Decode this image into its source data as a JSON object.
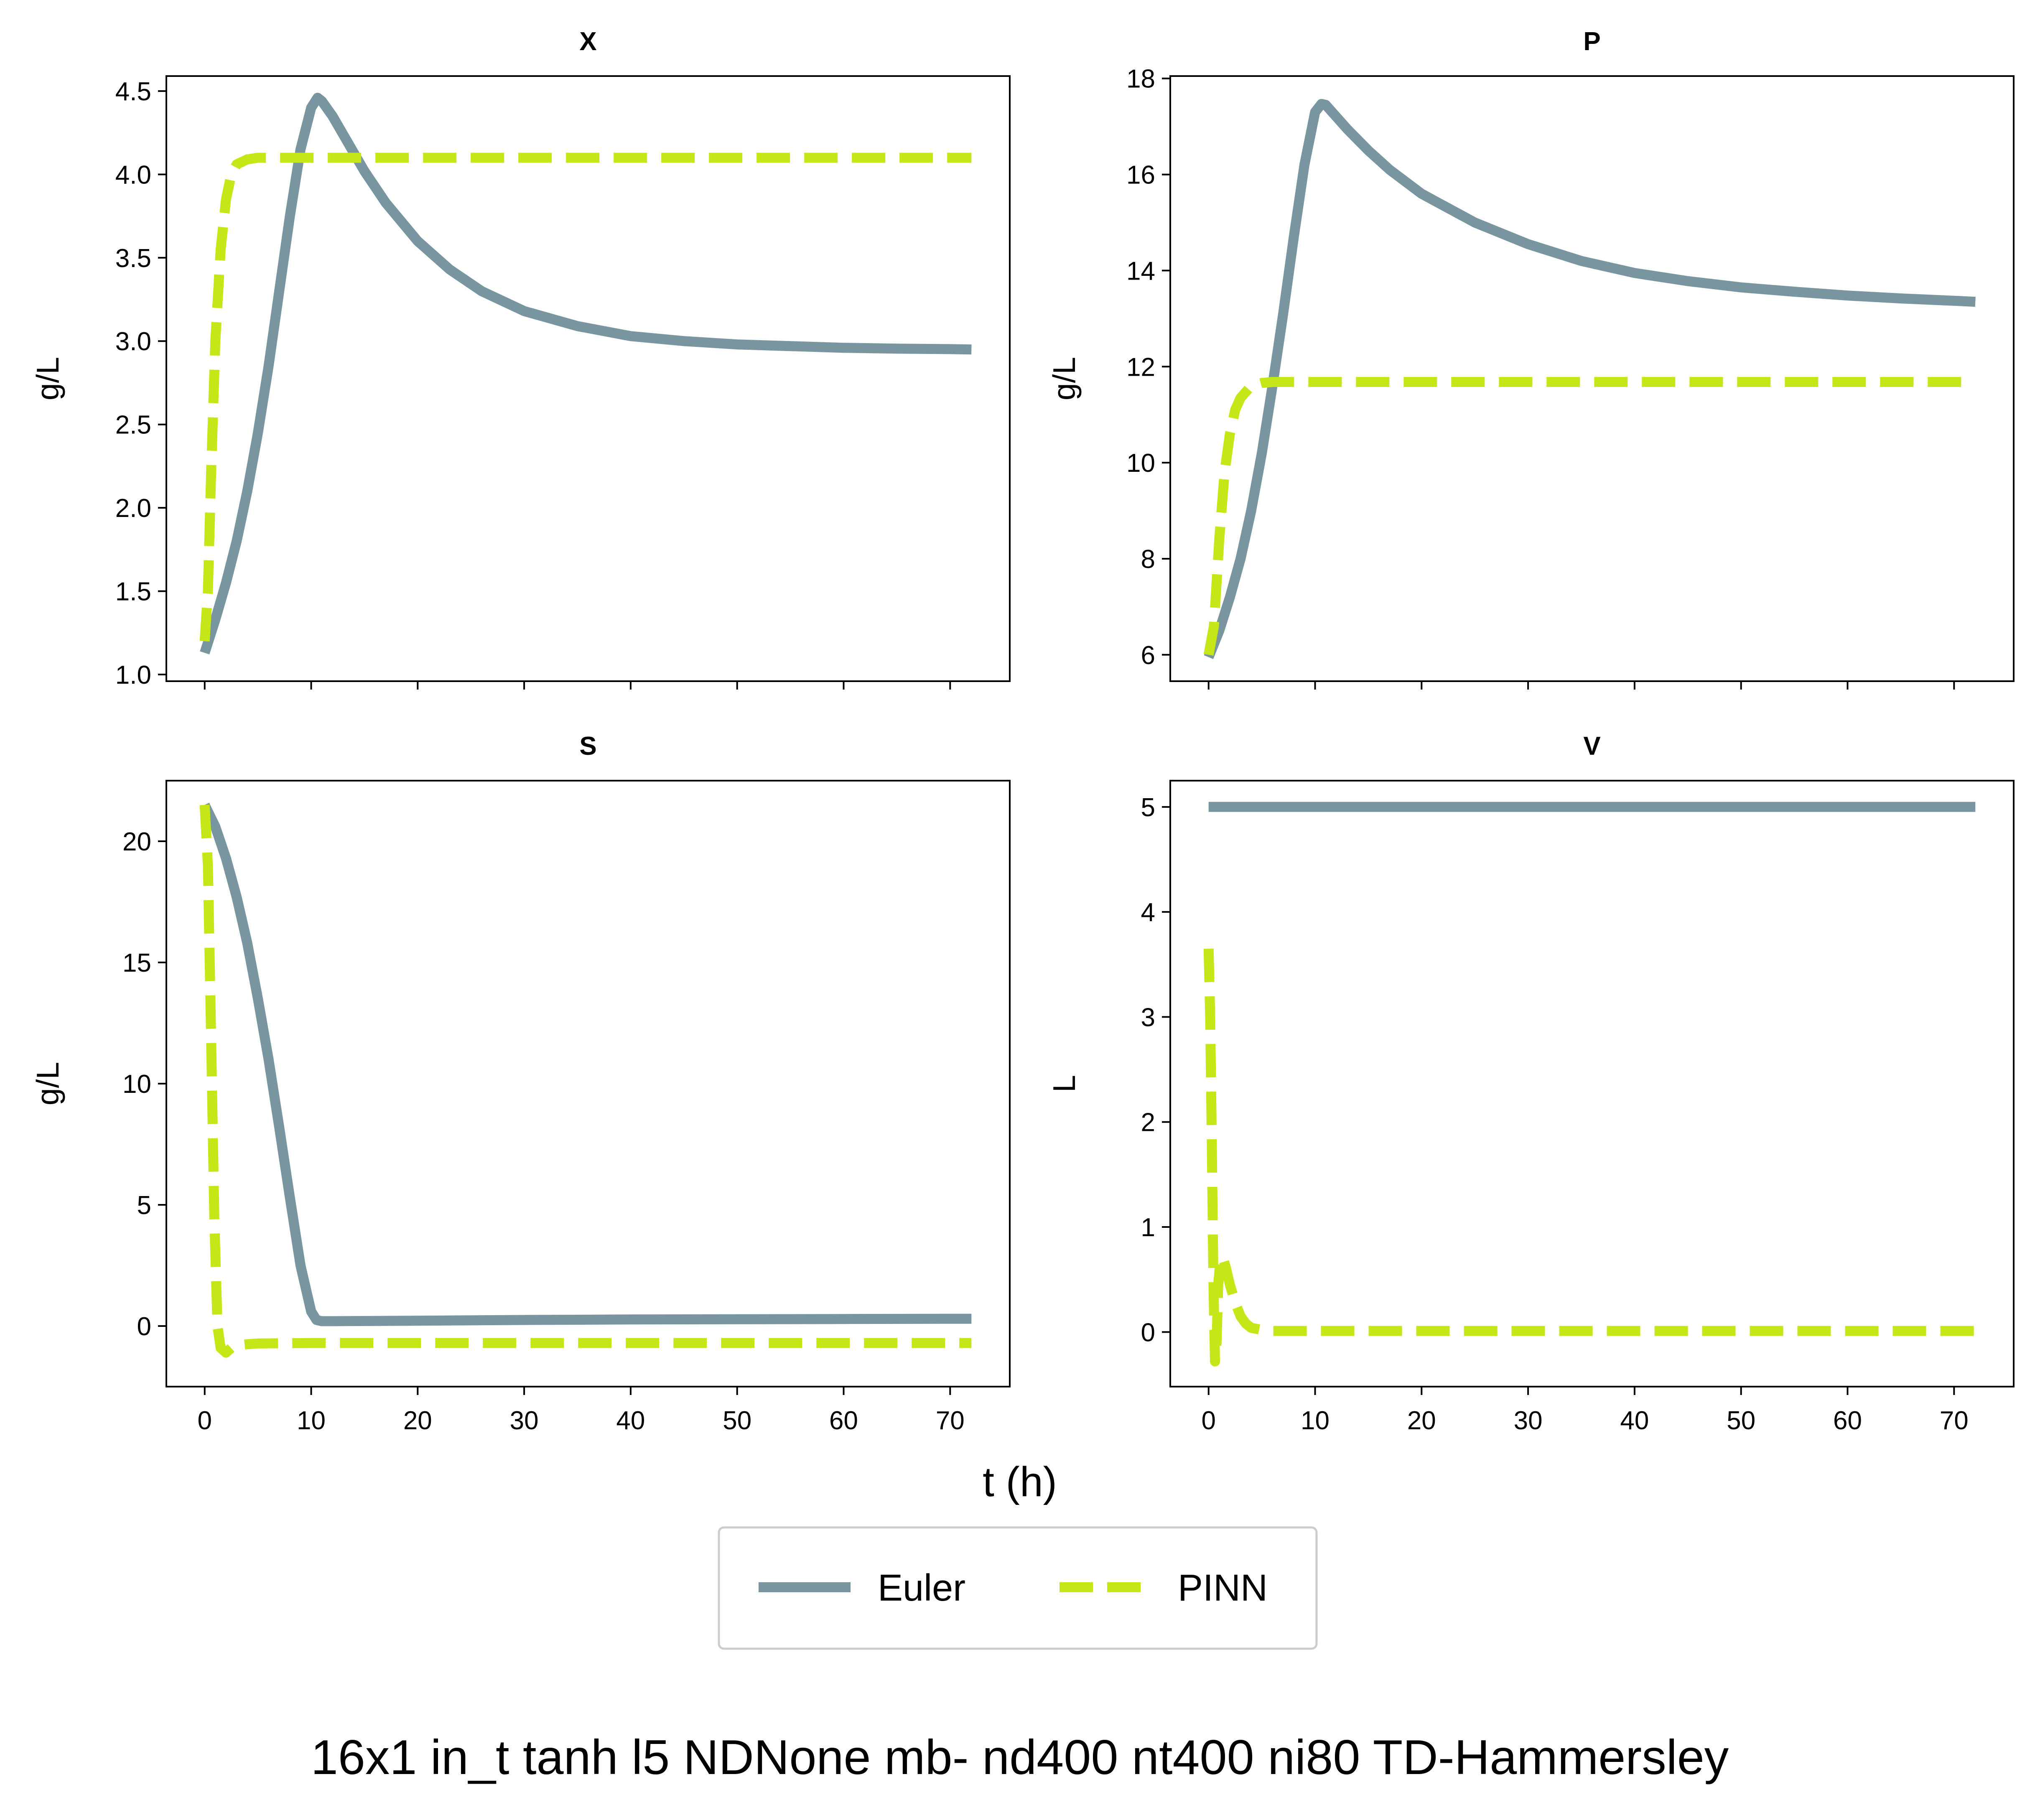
{
  "figure": {
    "suptitle": "16x1 in_t tanh l5 NDNone mb- nd400 nt400 ni80 TD-Hammersley",
    "xlabel": "t (h)",
    "colors": {
      "euler": "#7895A0",
      "pinn": "#C5E617"
    }
  },
  "legend": {
    "placement": "bottom-center",
    "entries": [
      {
        "label": "Euler",
        "style": "solid"
      },
      {
        "label": "PINN",
        "style": "dashed"
      }
    ]
  },
  "chart_data": [
    {
      "type": "line",
      "title": "X",
      "ylabel": "g/L",
      "xlim": [
        -3.6,
        75.6
      ],
      "ylim": [
        0.96,
        4.59
      ],
      "xticks": [
        0,
        10,
        20,
        30,
        40,
        50,
        60,
        70
      ],
      "yticks": [
        1.0,
        1.5,
        2.0,
        2.5,
        3.0,
        3.5,
        4.0,
        4.5
      ],
      "ytick_labels": [
        "1.0",
        "1.5",
        "2.0",
        "2.5",
        "3.0",
        "3.5",
        "4.0",
        "4.5"
      ],
      "show_xtick_labels": false,
      "series": [
        {
          "name": "Euler",
          "style": "solid",
          "x": [
            0,
            1,
            2,
            3,
            4,
            5,
            6,
            7,
            8,
            9,
            10,
            10.6,
            11,
            12,
            13,
            14,
            15,
            17,
            20,
            23,
            26,
            30,
            35,
            40,
            45,
            50,
            55,
            60,
            65,
            70,
            72
          ],
          "y": [
            1.13,
            1.33,
            1.55,
            1.8,
            2.1,
            2.45,
            2.85,
            3.3,
            3.75,
            4.15,
            4.4,
            4.46,
            4.44,
            4.35,
            4.24,
            4.13,
            4.02,
            3.83,
            3.6,
            3.43,
            3.3,
            3.18,
            3.09,
            3.03,
            3.0,
            2.98,
            2.97,
            2.96,
            2.955,
            2.952,
            2.95
          ]
        },
        {
          "name": "PINN",
          "style": "dashed",
          "x": [
            0,
            0.3,
            0.6,
            1,
            1.5,
            2,
            2.5,
            3,
            4,
            5,
            6,
            8,
            10,
            15,
            20,
            30,
            40,
            50,
            60,
            70,
            72
          ],
          "y": [
            1.2,
            1.5,
            2.2,
            3.0,
            3.55,
            3.85,
            4.0,
            4.06,
            4.09,
            4.1,
            4.1,
            4.1,
            4.1,
            4.1,
            4.1,
            4.1,
            4.1,
            4.1,
            4.1,
            4.1,
            4.1
          ]
        }
      ]
    },
    {
      "type": "line",
      "title": "P",
      "ylabel": "g/L",
      "xlim": [
        -3.6,
        75.6
      ],
      "ylim": [
        5.45,
        18.05
      ],
      "xticks": [
        0,
        10,
        20,
        30,
        40,
        50,
        60,
        70
      ],
      "yticks": [
        6,
        8,
        10,
        12,
        14,
        16,
        18
      ],
      "ytick_labels": [
        "6",
        "8",
        "10",
        "12",
        "14",
        "16",
        "18"
      ],
      "show_xtick_labels": false,
      "series": [
        {
          "name": "Euler",
          "style": "solid",
          "x": [
            0,
            1,
            2,
            3,
            4,
            5,
            6,
            7,
            8,
            9,
            10,
            10.6,
            11,
            12,
            13,
            15,
            17,
            20,
            25,
            30,
            35,
            40,
            45,
            50,
            55,
            60,
            65,
            70,
            72
          ],
          "y": [
            5.95,
            6.5,
            7.2,
            8.0,
            9.0,
            10.2,
            11.6,
            13.1,
            14.7,
            16.2,
            17.3,
            17.47,
            17.45,
            17.2,
            16.95,
            16.5,
            16.1,
            15.6,
            15.0,
            14.55,
            14.2,
            13.95,
            13.78,
            13.65,
            13.56,
            13.48,
            13.42,
            13.37,
            13.35
          ]
        },
        {
          "name": "PINN",
          "style": "dashed",
          "x": [
            0,
            0.5,
            1,
            1.5,
            2,
            2.5,
            3,
            4,
            5,
            6,
            8,
            10,
            20,
            30,
            40,
            50,
            60,
            70,
            72
          ],
          "y": [
            6.0,
            6.6,
            8.4,
            9.8,
            10.6,
            11.1,
            11.35,
            11.6,
            11.66,
            11.68,
            11.68,
            11.68,
            11.68,
            11.68,
            11.68,
            11.68,
            11.68,
            11.68,
            11.68
          ]
        }
      ]
    },
    {
      "type": "line",
      "title": "S",
      "ylabel": "g/L",
      "xlim": [
        -3.6,
        75.6
      ],
      "ylim": [
        -2.5,
        22.5
      ],
      "xticks": [
        0,
        10,
        20,
        30,
        40,
        50,
        60,
        70
      ],
      "xtick_labels": [
        "0",
        "10",
        "20",
        "30",
        "40",
        "50",
        "60",
        "70"
      ],
      "yticks": [
        0,
        5,
        10,
        15,
        20
      ],
      "ytick_labels": [
        "0",
        "5",
        "10",
        "15",
        "20"
      ],
      "show_xtick_labels": true,
      "series": [
        {
          "name": "Euler",
          "style": "solid",
          "x": [
            0,
            1,
            2,
            3,
            4,
            5,
            6,
            7,
            8,
            9,
            10,
            10.5,
            11,
            12,
            20,
            30,
            40,
            50,
            60,
            70,
            72
          ],
          "y": [
            21.5,
            20.6,
            19.3,
            17.7,
            15.8,
            13.5,
            11.0,
            8.2,
            5.3,
            2.5,
            0.6,
            0.25,
            0.2,
            0.2,
            0.22,
            0.25,
            0.27,
            0.28,
            0.29,
            0.3,
            0.3
          ]
        },
        {
          "name": "PINN",
          "style": "dashed",
          "x": [
            0,
            0.3,
            0.6,
            0.9,
            1.2,
            1.5,
            2,
            2.5,
            3,
            4,
            5,
            10,
            20,
            30,
            40,
            50,
            60,
            70,
            72
          ],
          "y": [
            21.5,
            19.0,
            12.0,
            4.5,
            0.0,
            -0.9,
            -1.1,
            -0.9,
            -0.8,
            -0.75,
            -0.72,
            -0.7,
            -0.7,
            -0.7,
            -0.7,
            -0.7,
            -0.7,
            -0.7,
            -0.7
          ]
        }
      ]
    },
    {
      "type": "line",
      "title": "V",
      "ylabel": "L",
      "xlim": [
        -3.6,
        75.6
      ],
      "ylim": [
        -0.52,
        5.25
      ],
      "xticks": [
        0,
        10,
        20,
        30,
        40,
        50,
        60,
        70
      ],
      "xtick_labels": [
        "0",
        "10",
        "20",
        "30",
        "40",
        "50",
        "60",
        "70"
      ],
      "yticks": [
        0,
        1,
        2,
        3,
        4,
        5
      ],
      "ytick_labels": [
        "0",
        "1",
        "2",
        "3",
        "4",
        "5"
      ],
      "show_xtick_labels": true,
      "series": [
        {
          "name": "Euler",
          "style": "solid",
          "x": [
            0,
            72
          ],
          "y": [
            5.0,
            5.0
          ]
        },
        {
          "name": "PINN",
          "style": "dashed",
          "x": [
            0,
            0.15,
            0.3,
            0.45,
            0.6,
            0.75,
            0.9,
            1.1,
            1.3,
            1.6,
            2,
            2.5,
            3,
            3.5,
            4,
            5,
            6,
            8,
            10,
            20,
            30,
            40,
            50,
            60,
            70,
            72
          ],
          "y": [
            3.65,
            3.0,
            1.8,
            0.5,
            -0.28,
            -0.1,
            0.45,
            0.68,
            0.72,
            0.62,
            0.45,
            0.28,
            0.15,
            0.08,
            0.04,
            0.02,
            0.01,
            0.01,
            0.01,
            0.01,
            0.01,
            0.01,
            0.01,
            0.01,
            0.01,
            0.01
          ]
        }
      ]
    }
  ]
}
